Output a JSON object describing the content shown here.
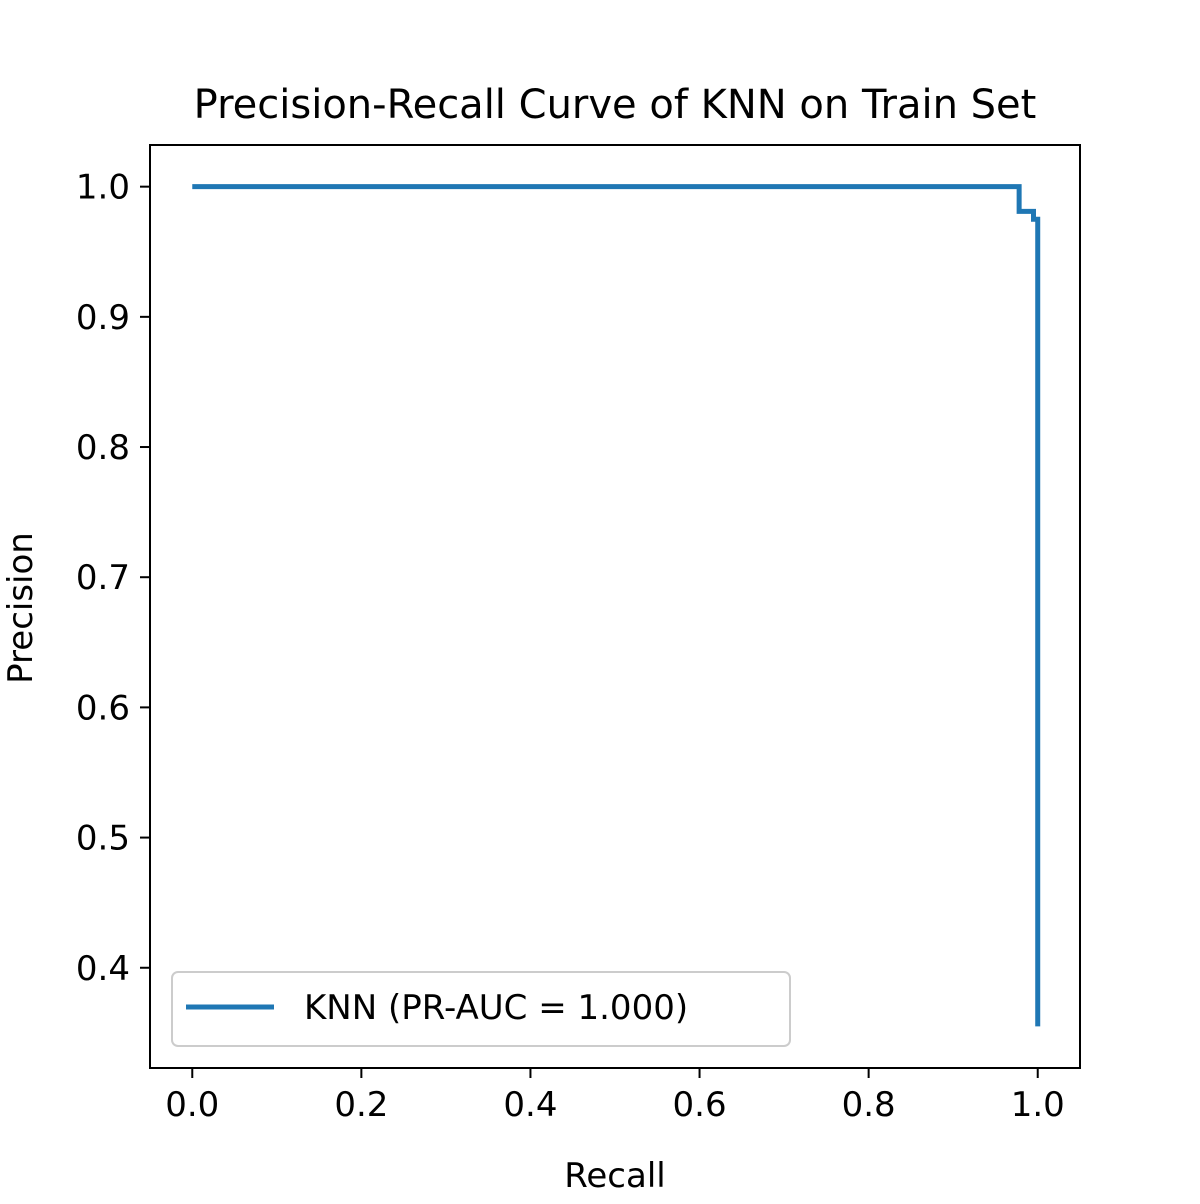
{
  "chart_data": {
    "type": "line",
    "title": "Precision-Recall Curve of KNN on Train Set",
    "xlabel": "Recall",
    "ylabel": "Precision",
    "xlim": [
      -0.05,
      1.05
    ],
    "ylim": [
      0.323,
      1.032
    ],
    "xticks": [
      0.0,
      0.2,
      0.4,
      0.6,
      0.8,
      1.0
    ],
    "xtick_labels": [
      "0.0",
      "0.2",
      "0.4",
      "0.6",
      "0.8",
      "1.0"
    ],
    "yticks": [
      0.4,
      0.5,
      0.6,
      0.7,
      0.8,
      0.9,
      1.0
    ],
    "ytick_labels": [
      "0.4",
      "0.5",
      "0.6",
      "0.7",
      "0.8",
      "0.9",
      "1.0"
    ],
    "grid": false,
    "legend": {
      "position": "lower-left",
      "entries": [
        "KNN (PR-AUC = 1.000)"
      ]
    },
    "series": [
      {
        "name": "KNN (PR-AUC = 1.000)",
        "color": "#1f77b4",
        "drawstyle": "steps",
        "x": [
          0.0,
          0.978,
          0.978,
          0.995,
          0.995,
          1.0,
          1.0
        ],
        "y": [
          1.0,
          1.0,
          0.981,
          0.981,
          0.975,
          0.975,
          0.355
        ]
      }
    ]
  }
}
